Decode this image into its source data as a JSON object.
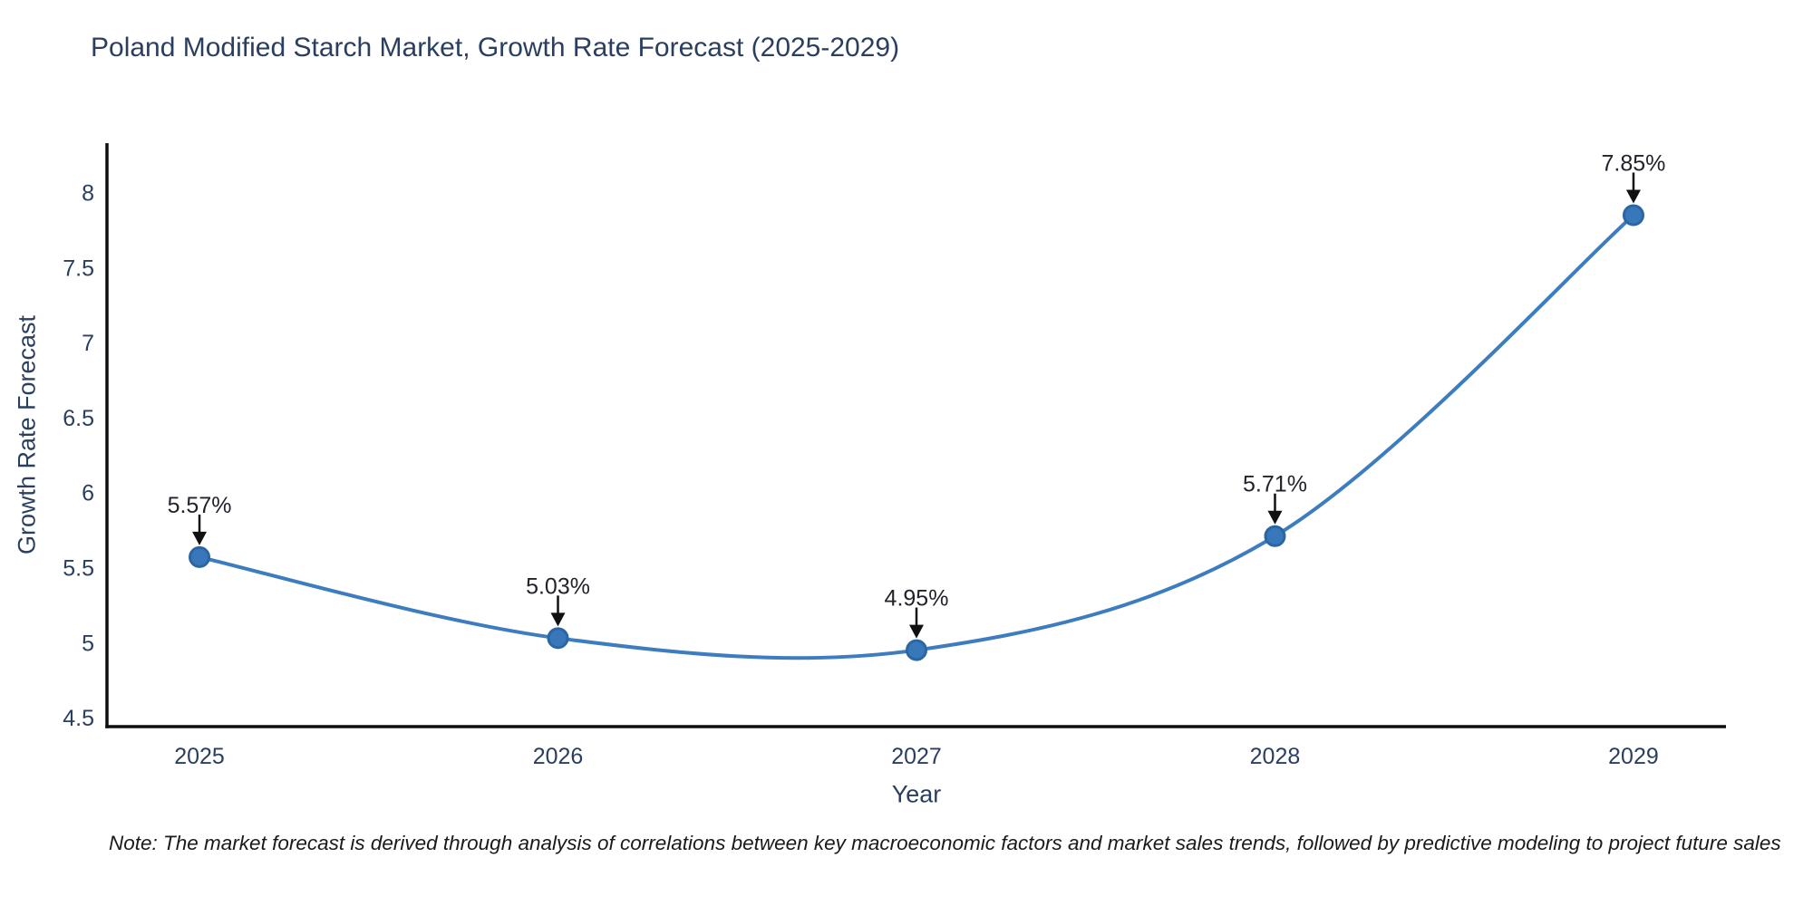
{
  "title": {
    "text": "Poland Modified Starch Market, Growth Rate Forecast (2025-2029)"
  },
  "note": {
    "text": "Note: The market forecast is derived through analysis of correlations between key macroeconomic factors and market sales trends, followed by predictive modeling to project future sales"
  },
  "chart_data": {
    "type": "line",
    "line_shape": "spline",
    "title": "Poland Modified Starch Market, Growth Rate Forecast (2025-2029)",
    "xlabel": "Year",
    "ylabel": "Growth Rate Forecast",
    "x": [
      2025,
      2026,
      2027,
      2028,
      2029
    ],
    "values": [
      5.57,
      5.03,
      4.95,
      5.71,
      7.85
    ],
    "point_labels": [
      "5.57%",
      "5.03%",
      "4.95%",
      "5.71%",
      "7.85%"
    ],
    "x_tick_labels": [
      "2025",
      "2026",
      "2027",
      "2028",
      "2029"
    ],
    "y_ticks": [
      4.5,
      5,
      5.5,
      6,
      6.5,
      7,
      7.5,
      8
    ],
    "y_tick_labels": [
      "4.5",
      "5",
      "5.5",
      "6",
      "6.5",
      "7",
      "7.5",
      "8"
    ],
    "xlim": [
      2024.742,
      2029.258
    ],
    "ylim": [
      4.44,
      8.33
    ],
    "grid": false,
    "legend": false,
    "colors": {
      "line": "#3d7dbf",
      "marker": "#3878ba",
      "marker_edge": "#2b66a3",
      "axis": "#0f0f0f",
      "tick_text": "#2a3f5f",
      "title_text": "#2a3f5f",
      "annotation_text": "#22222c",
      "arrow": "#111111",
      "background": "#ffffff"
    }
  }
}
